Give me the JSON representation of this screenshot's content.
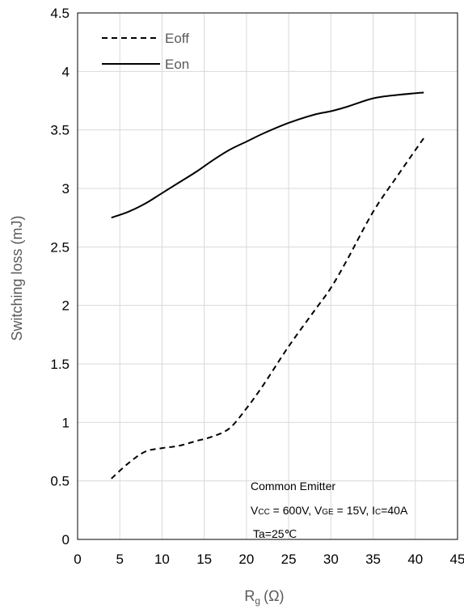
{
  "chart_data": {
    "type": "line",
    "title": "",
    "xlabel": {
      "main": "R",
      "sub": "g",
      "unit": "(Ω)"
    },
    "ylabel": "Switching loss (mJ)",
    "xlim": [
      0,
      45
    ],
    "ylim": [
      0,
      4.5
    ],
    "x_ticks": [
      "0",
      "5",
      "10",
      "15",
      "20",
      "25",
      "30",
      "35",
      "40",
      "45"
    ],
    "y_ticks": [
      "0",
      "0.5",
      "1",
      "1.5",
      "2",
      "2.5",
      "3",
      "3.5",
      "4",
      "4.5"
    ],
    "grid": true,
    "legend_position": "top-left",
    "series": [
      {
        "name": "Eoff",
        "style": "dashed",
        "color": "#000000",
        "x": [
          4,
          6,
          8,
          10,
          12,
          14,
          16,
          18,
          20,
          22,
          25,
          28,
          30,
          32,
          35,
          38,
          41
        ],
        "y": [
          0.52,
          0.65,
          0.75,
          0.78,
          0.8,
          0.84,
          0.88,
          0.95,
          1.12,
          1.32,
          1.65,
          1.95,
          2.15,
          2.4,
          2.8,
          3.12,
          3.43
        ]
      },
      {
        "name": "Eon",
        "style": "solid",
        "color": "#000000",
        "x": [
          4,
          6,
          8,
          10,
          12,
          14,
          16,
          18,
          20,
          22,
          25,
          28,
          30,
          32,
          35,
          38,
          41
        ],
        "y": [
          2.75,
          2.8,
          2.87,
          2.96,
          3.05,
          3.14,
          3.24,
          3.33,
          3.4,
          3.47,
          3.56,
          3.63,
          3.66,
          3.7,
          3.77,
          3.8,
          3.82
        ]
      }
    ],
    "annotations": {
      "line1": "Common Emitter",
      "line2": [
        {
          "t": "V"
        },
        {
          "t": "CC",
          "sub": true
        },
        {
          "t": " = 600V, V"
        },
        {
          "t": "GE",
          "sub": true
        },
        {
          "t": " = 15V, I"
        },
        {
          "t": "C",
          "sub": true
        },
        {
          "t": "=40A"
        }
      ],
      "line3": "Ta=25℃"
    }
  }
}
